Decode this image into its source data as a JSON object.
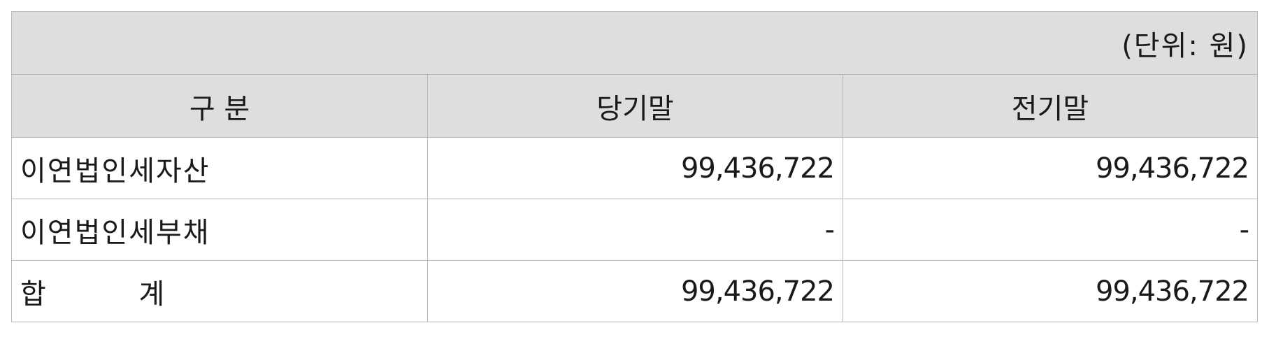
{
  "unit_note": "(단위: 원)",
  "headers": [
    "구 분",
    "당기말",
    "전기말"
  ],
  "rows": [
    {
      "label": "이연법인세자산",
      "current": "99,436,722",
      "prior": "99,436,722"
    },
    {
      "label": "이연법인세부채",
      "current": "-",
      "prior": "-"
    },
    {
      "label": "합 계",
      "current": "99,436,722",
      "prior": "99,436,722"
    }
  ]
}
